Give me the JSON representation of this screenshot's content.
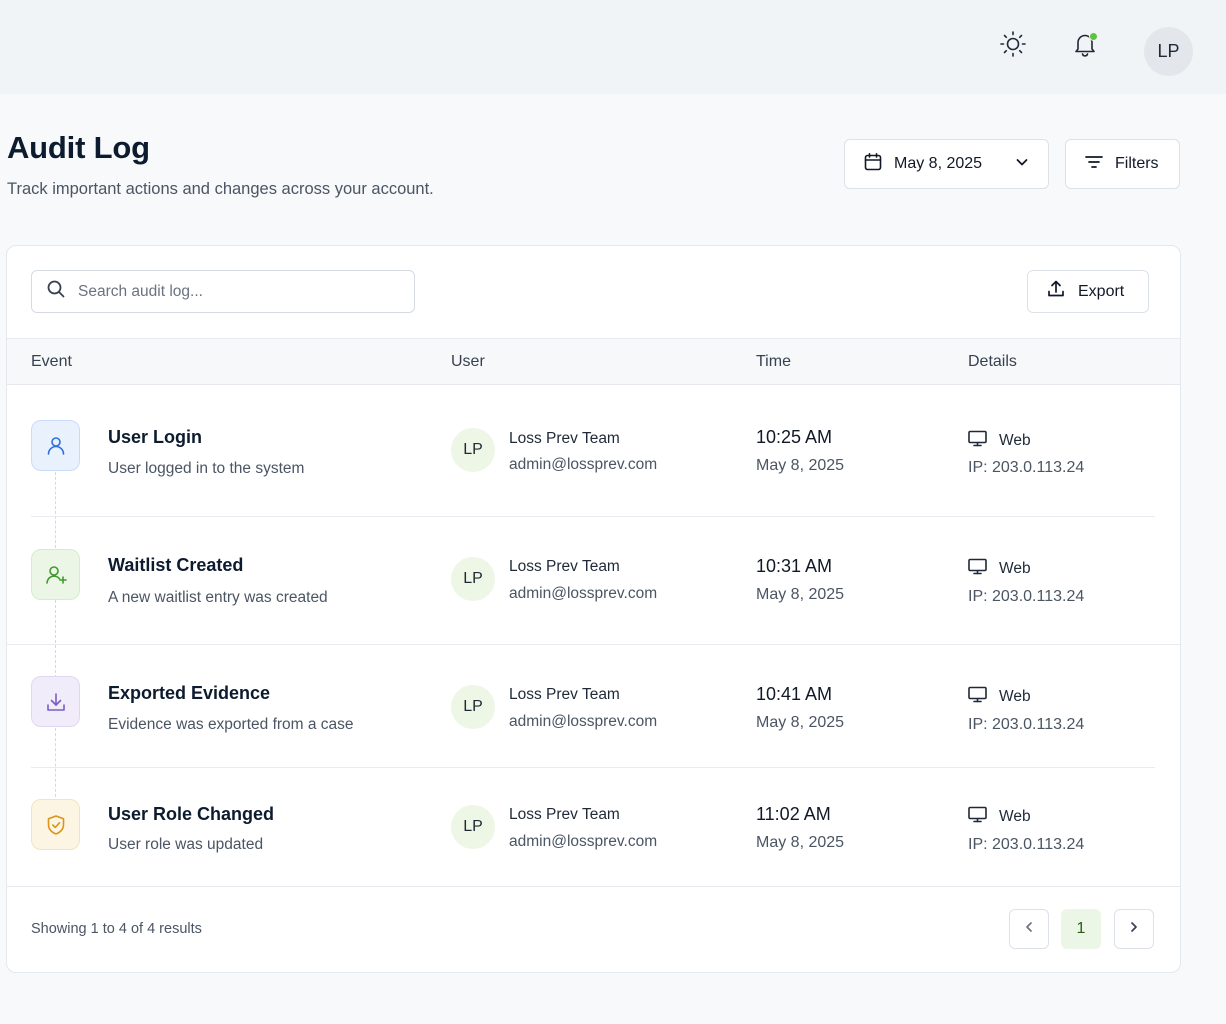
{
  "header": {
    "theme_icon": "sun-icon",
    "notification_icon": "bell-icon",
    "notification_dot_color": "#5cc43a",
    "avatar_initials": "LP"
  },
  "page": {
    "title": "Audit Log",
    "subtitle": "Track important actions and changes across your account.",
    "date_picker": {
      "icon": "calendar-icon",
      "value": "May 8, 2025"
    },
    "filters_label": "Filters"
  },
  "toolbar": {
    "search_placeholder": "Search audit log...",
    "export_label": "Export"
  },
  "table": {
    "columns": [
      "Event",
      "User",
      "Time",
      "Details"
    ],
    "rows": [
      {
        "icon": "user-icon",
        "accent": "#2f6fdc",
        "title": "User Login",
        "description": "User logged in to the system",
        "user_initials": "LP",
        "user_name": "Loss Prev Team",
        "user_email": "admin@lossprev.com",
        "time": "10:25 AM",
        "date": "May 8, 2025",
        "device": "Web",
        "ip": "IP: 203.0.113.24"
      },
      {
        "icon": "user-plus-icon",
        "accent": "#3f9a2e",
        "title": "Waitlist Created",
        "description": "A new waitlist entry was created",
        "user_initials": "LP",
        "user_name": "Loss Prev Team",
        "user_email": "admin@lossprev.com",
        "time": "10:31 AM",
        "date": "May 8, 2025",
        "device": "Web",
        "ip": "IP: 203.0.113.24"
      },
      {
        "icon": "download-icon",
        "accent": "#7b5cc4",
        "title": "Exported Evidence",
        "description": "Evidence was exported from a case",
        "user_initials": "LP",
        "user_name": "Loss Prev Team",
        "user_email": "admin@lossprev.com",
        "time": "10:41 AM",
        "date": "May 8, 2025",
        "device": "Web",
        "ip": "IP: 203.0.113.24"
      },
      {
        "icon": "shield-check-icon",
        "accent": "#d9961a",
        "title": "User Role Changed",
        "description": "User role was updated",
        "user_initials": "LP",
        "user_name": "Loss Prev Team",
        "user_email": "admin@lossprev.com",
        "time": "11:02 AM",
        "date": "May 8, 2025",
        "device": "Web",
        "ip": "IP: 203.0.113.24"
      }
    ]
  },
  "footer": {
    "summary": "Showing 1 to 4 of 4 results",
    "current_page": "1"
  }
}
